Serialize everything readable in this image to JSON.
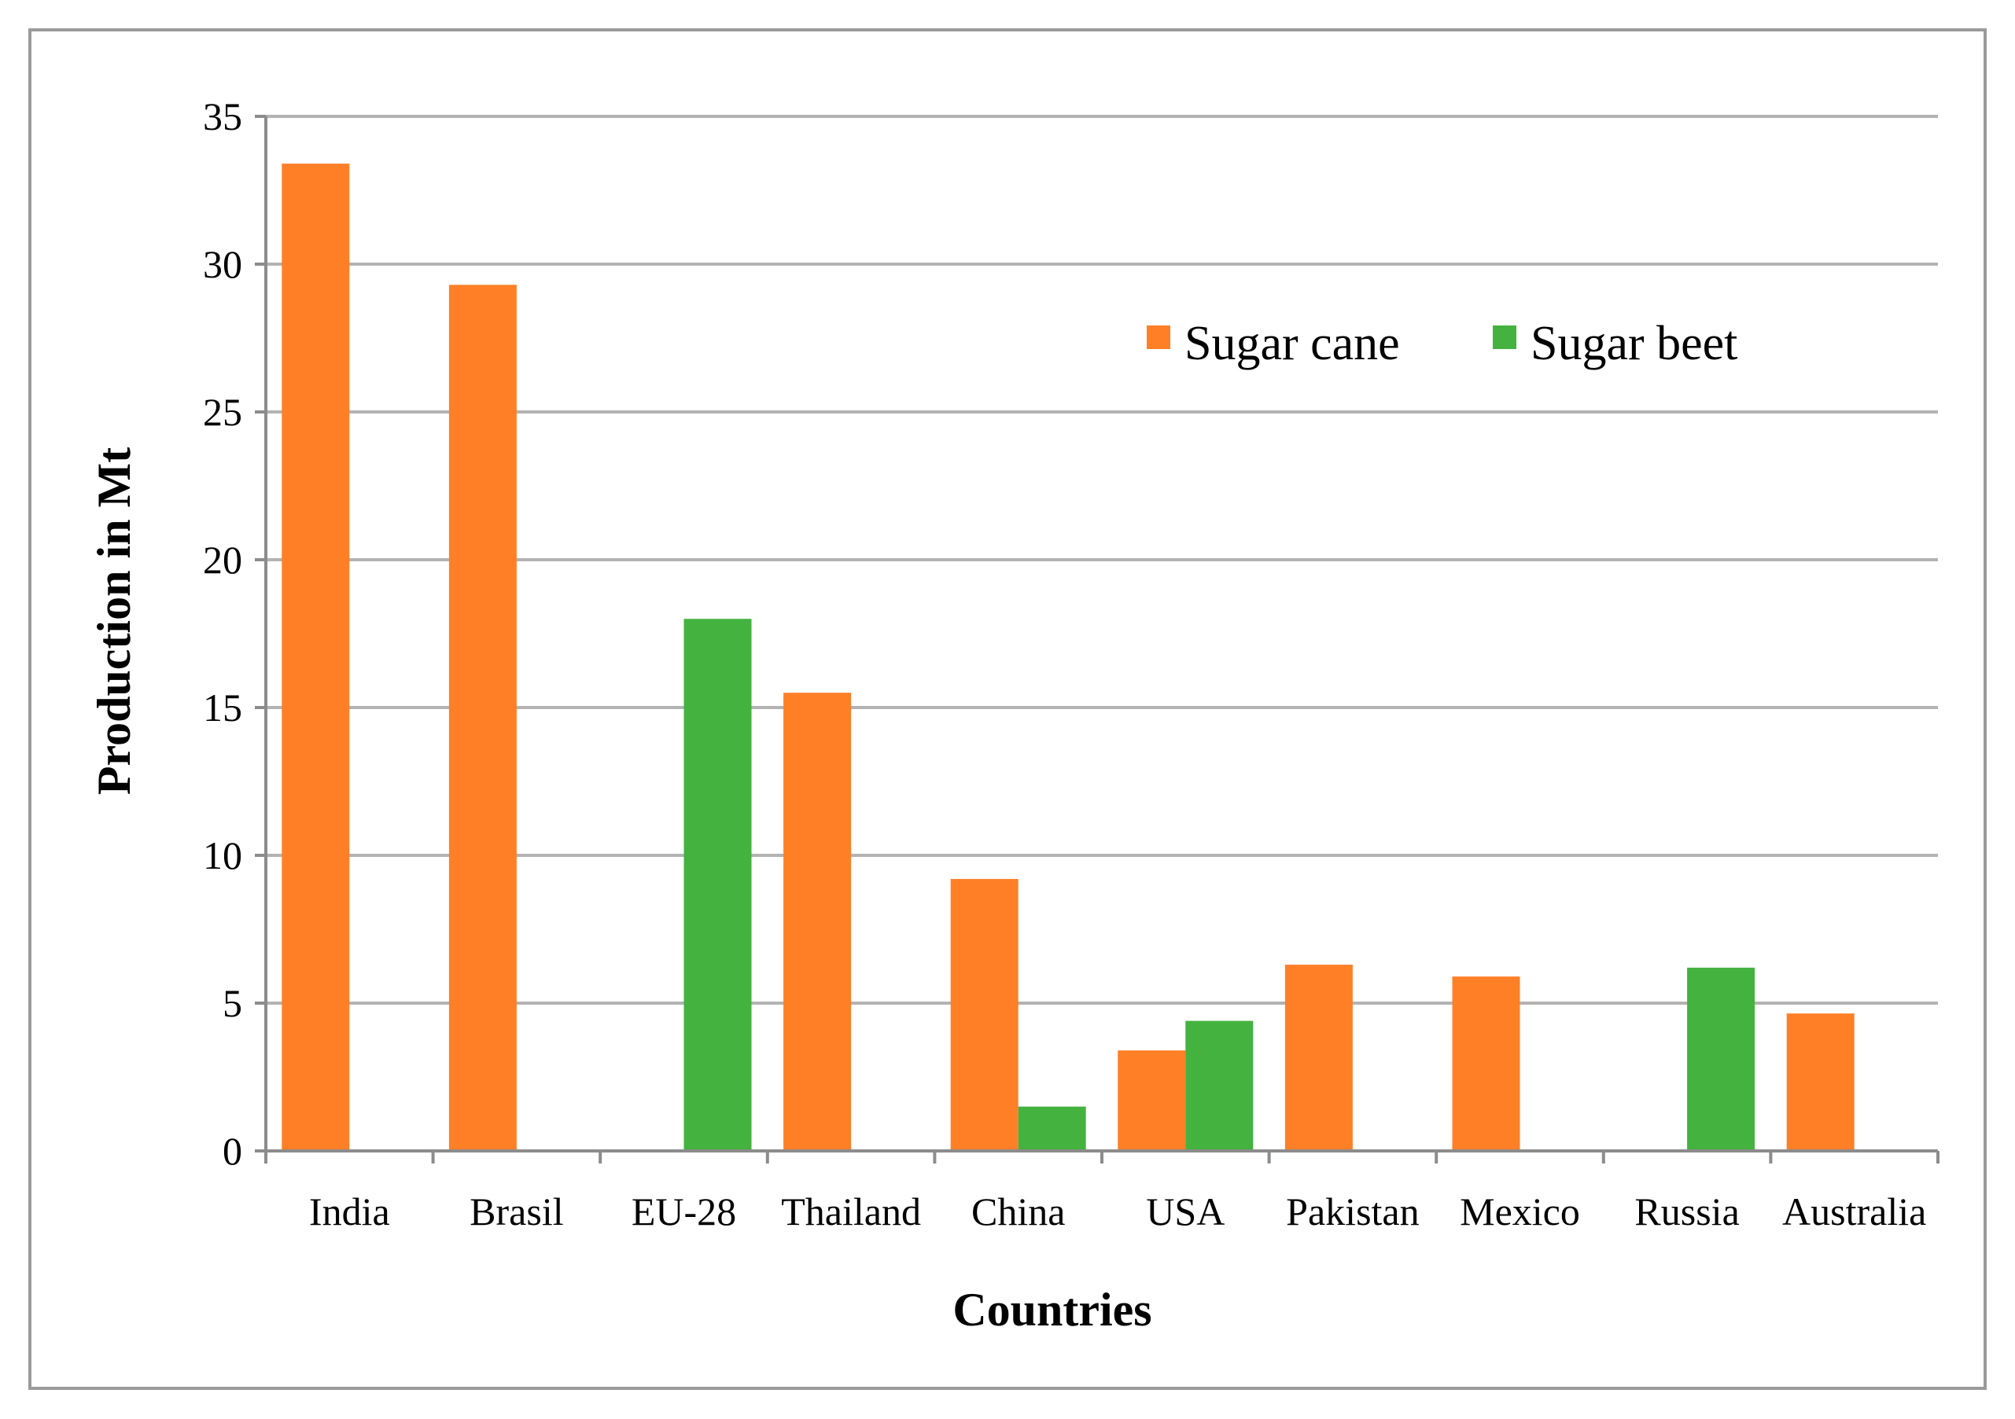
{
  "chart_data": {
    "type": "bar",
    "xlabel": "Countries",
    "ylabel": "Production in Mt",
    "ylim": [
      0,
      35
    ],
    "yticks": [
      "0",
      "5",
      "10",
      "15",
      "20",
      "25",
      "30",
      "35"
    ],
    "grid": true,
    "legend_position": "top-right",
    "categories": [
      "India",
      "Brasil",
      "EU-28",
      "Thailand",
      "China",
      "USA",
      "Pakistan",
      "Mexico",
      "Russia",
      "Australia"
    ],
    "series": [
      {
        "name": "Sugar cane",
        "color": "#FF7F27",
        "values": [
          33.4,
          29.3,
          0,
          15.5,
          9.2,
          3.4,
          6.3,
          5.9,
          0,
          4.65
        ]
      },
      {
        "name": "Sugar beet",
        "color": "#44B23E",
        "values": [
          0,
          0,
          18.0,
          0,
          1.5,
          4.4,
          0,
          0,
          6.2,
          0
        ]
      }
    ]
  }
}
